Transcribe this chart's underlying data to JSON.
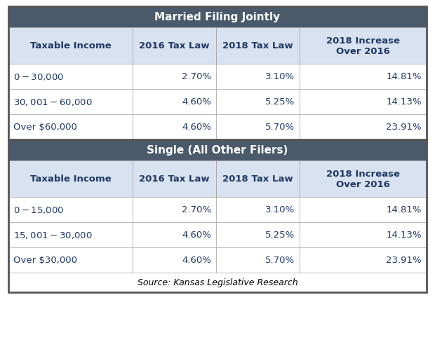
{
  "section1_title": "Married Filing Jointly",
  "section2_title": "Single (All Other Filers)",
  "source_text": "Source: Kansas Legislative Research",
  "col_headers": [
    "Taxable Income",
    "2016 Tax Law",
    "2018 Tax Law",
    "2018 Increase\nOver 2016"
  ],
  "married_rows": [
    [
      "$0 - $30,000",
      "2.70%",
      "3.10%",
      "14.81%"
    ],
    [
      "$30,001 - $60,000",
      "4.60%",
      "5.25%",
      "14.13%"
    ],
    [
      "Over $60,000",
      "4.60%",
      "5.70%",
      "23.91%"
    ]
  ],
  "single_rows": [
    [
      "$0 - $15,000",
      "2.70%",
      "3.10%",
      "14.81%"
    ],
    [
      "$15,001 - $30,000",
      "4.60%",
      "5.25%",
      "14.13%"
    ],
    [
      "Over $30,000",
      "4.60%",
      "5.70%",
      "23.91%"
    ]
  ],
  "header_bg": "#4a5a6b",
  "header_text": "#ffffff",
  "col_header_bg": "#d9e2f0",
  "row_bg_white": "#ffffff",
  "border_light": "#aaaaaa",
  "border_dark": "#555555",
  "text_color": "#1f3864",
  "source_text_color": "#000000",
  "outer_border": "#555555"
}
